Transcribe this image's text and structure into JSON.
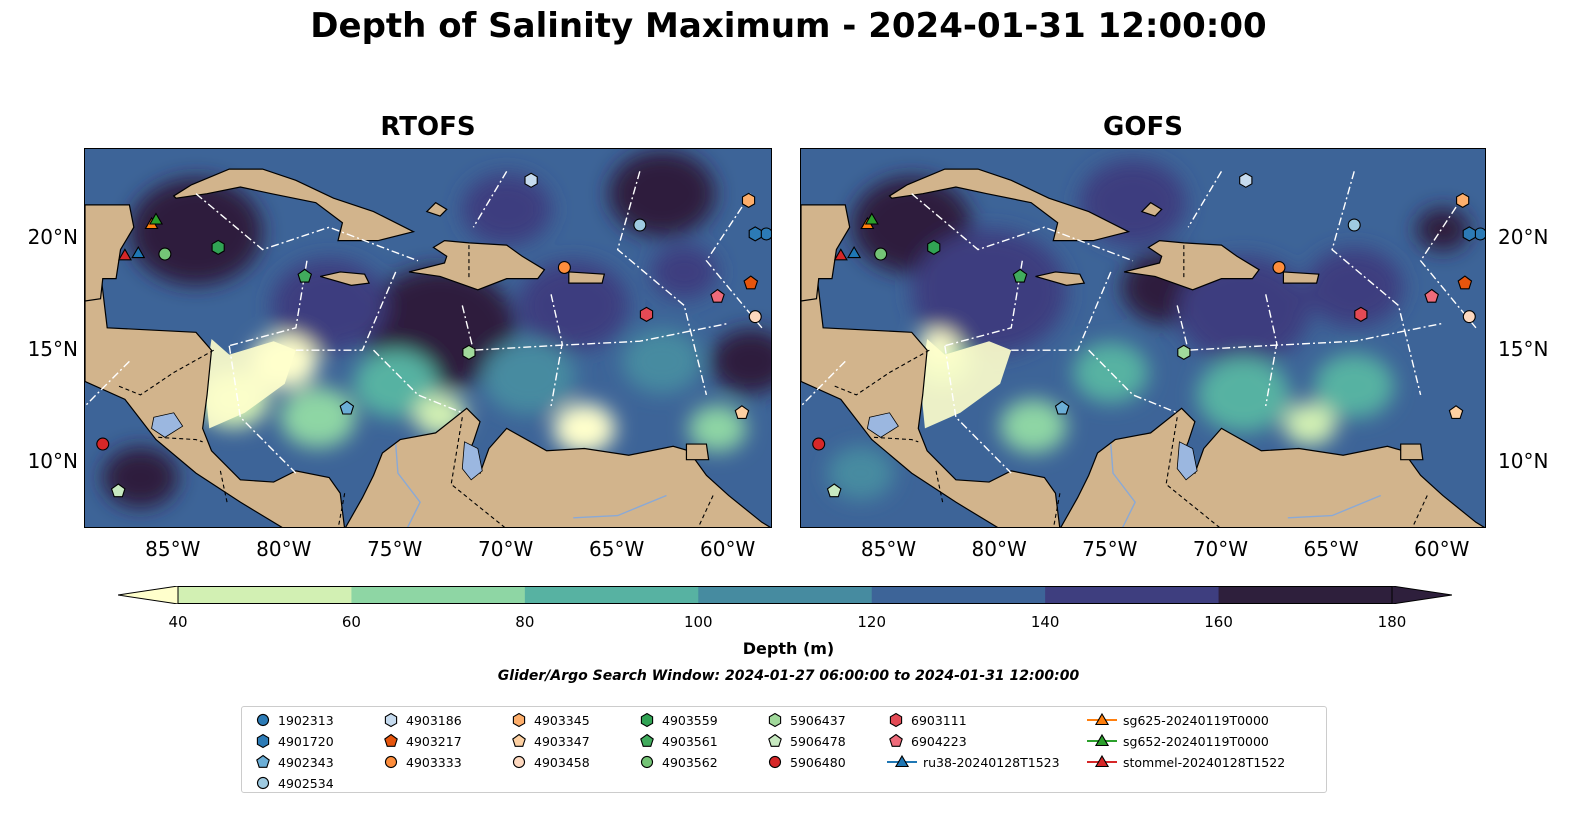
{
  "title": "Depth of Salinity Maximum - 2024-01-31 12:00:00",
  "panels": [
    {
      "title": "RTOFS",
      "model": "rtofs"
    },
    {
      "title": "GOFS",
      "model": "gofs"
    }
  ],
  "axes": {
    "lon_ticks": [
      "85°W",
      "80°W",
      "75°W",
      "70°W",
      "65°W",
      "60°W"
    ],
    "lat_ticks": [
      "20°N",
      "15°N",
      "10°N"
    ],
    "lon_range": [
      -89,
      -58
    ],
    "lat_range": [
      7,
      24
    ]
  },
  "colorbar": {
    "label": "Depth (m)",
    "ticks": [
      "40",
      "60",
      "80",
      "100",
      "120",
      "140",
      "160",
      "180"
    ],
    "colors": [
      "#ffffcc",
      "#d2f0b3",
      "#8ed6a4",
      "#57b2a2",
      "#468ba0",
      "#3d6498",
      "#3e3e7f",
      "#2e1f3c"
    ],
    "extend": "both"
  },
  "subtitle": "Glider/Argo Search Window: 2024-01-27 06:00:00 to 2024-01-31 12:00:00",
  "legend": [
    {
      "label": "1902313",
      "marker": "circle",
      "color": "#2c7bb6"
    },
    {
      "label": "4901720",
      "marker": "hexagon",
      "color": "#2c7bb6"
    },
    {
      "label": "4902343",
      "marker": "pentagon",
      "color": "#6baed6"
    },
    {
      "label": "4902534",
      "marker": "circle",
      "color": "#9ecae1"
    },
    {
      "label": "4903186",
      "marker": "hexagon",
      "color": "#c6dbef"
    },
    {
      "label": "4903217",
      "marker": "pentagon",
      "color": "#e6550d"
    },
    {
      "label": "4903333",
      "marker": "circle",
      "color": "#fd8d3c"
    },
    {
      "label": "4903345",
      "marker": "hexagon",
      "color": "#fdae6b"
    },
    {
      "label": "4903347",
      "marker": "pentagon",
      "color": "#fdd0a2"
    },
    {
      "label": "4903458",
      "marker": "circle",
      "color": "#fdd8bf"
    },
    {
      "label": "4903559",
      "marker": "hexagon",
      "color": "#31a354"
    },
    {
      "label": "4903561",
      "marker": "pentagon",
      "color": "#41ab5d"
    },
    {
      "label": "4903562",
      "marker": "circle",
      "color": "#74c476"
    },
    {
      "label": "5906437",
      "marker": "hexagon",
      "color": "#a1d99b"
    },
    {
      "label": "5906478",
      "marker": "pentagon",
      "color": "#c7e9c0"
    },
    {
      "label": "5906480",
      "marker": "circle",
      "color": "#d62728"
    },
    {
      "label": "6903111",
      "marker": "hexagon",
      "color": "#e34a55"
    },
    {
      "label": "6904223",
      "marker": "pentagon",
      "color": "#ee6b7a"
    },
    {
      "label": "ru38-20240128T1523",
      "marker": "triangle-line",
      "color": "#1f77b4"
    },
    {
      "label": "sg625-20240119T0000",
      "marker": "triangle-line",
      "color": "#ff7f0e"
    },
    {
      "label": "sg652-20240119T0000",
      "marker": "triangle-line",
      "color": "#2ca02c"
    },
    {
      "label": "stommel-20240128T1522",
      "marker": "triangle-line",
      "color": "#d62728"
    }
  ],
  "observations": [
    {
      "id": "1902313",
      "lon": -58.3,
      "lat": 20.2
    },
    {
      "id": "4901720",
      "lon": -58.8,
      "lat": 20.2
    },
    {
      "id": "4902343",
      "lon": -77.2,
      "lat": 12.4
    },
    {
      "id": "4902534",
      "lon": -64.0,
      "lat": 20.6
    },
    {
      "id": "4903186",
      "lon": -68.9,
      "lat": 22.6
    },
    {
      "id": "4903217",
      "lon": -59.0,
      "lat": 18.0
    },
    {
      "id": "4903333",
      "lon": -67.4,
      "lat": 18.7
    },
    {
      "id": "4903345",
      "lon": -59.1,
      "lat": 21.7
    },
    {
      "id": "4903347",
      "lon": -59.4,
      "lat": 12.2
    },
    {
      "id": "4903458",
      "lon": -58.8,
      "lat": 16.5
    },
    {
      "id": "4903559",
      "lon": -83.0,
      "lat": 19.6
    },
    {
      "id": "4903561",
      "lon": -79.1,
      "lat": 18.3
    },
    {
      "id": "4903562",
      "lon": -85.4,
      "lat": 19.3
    },
    {
      "id": "5906437",
      "lon": -71.7,
      "lat": 14.9
    },
    {
      "id": "5906478",
      "lon": -87.5,
      "lat": 8.7
    },
    {
      "id": "5906480",
      "lon": -88.2,
      "lat": 10.8
    },
    {
      "id": "6903111",
      "lon": -63.7,
      "lat": 16.6
    },
    {
      "id": "6904223",
      "lon": -60.5,
      "lat": 17.4
    }
  ],
  "gliders": [
    {
      "id": "ru38-20240128T1523",
      "lon": -86.6,
      "lat": 19.3
    },
    {
      "id": "sg625-20240119T0000",
      "lon": -86.0,
      "lat": 20.6
    },
    {
      "id": "sg652-20240119T0000",
      "lon": -85.8,
      "lat": 20.8
    },
    {
      "id": "stommel-20240128T1522",
      "lon": -87.2,
      "lat": 19.2
    }
  ]
}
